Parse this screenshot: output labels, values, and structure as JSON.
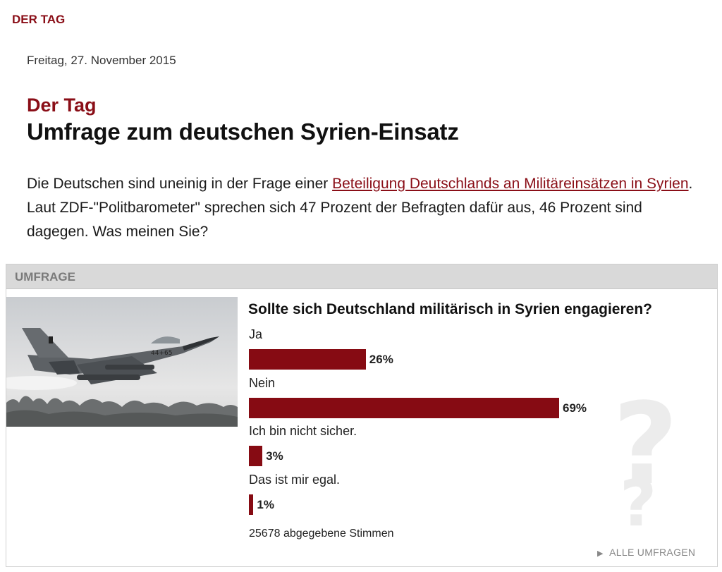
{
  "section_label": "DER TAG",
  "date": "Freitag, 27. November 2015",
  "kicker": "Der Tag",
  "headline": "Umfrage zum deutschen Syrien-Einsatz",
  "lead": {
    "before": "Die Deutschen sind uneinig in der Frage einer ",
    "link": "Beteiligung Deutschlands an Militäreinsätzen in Syrien",
    "after": ". Laut ZDF-\"Politbarometer\" sprechen sich 47 Prozent der Befragten dafür aus, 46 Prozent sind dagegen. Was meinen Sie?"
  },
  "poll": {
    "header": "UMFRAGE",
    "question": "Sollte sich Deutschland militärisch in Syrien engagieren?",
    "options": [
      {
        "label": "Ja",
        "percent_text": "26%",
        "value": 26
      },
      {
        "label": "Nein",
        "percent_text": "69%",
        "value": 69
      },
      {
        "label": "Ich bin nicht sicher.",
        "percent_text": "3%",
        "value": 3
      },
      {
        "label": "Das ist mir egal.",
        "percent_text": "1%",
        "value": 1
      }
    ],
    "votes": "25678 abgegebene Stimmen",
    "all_polls": "ALLE UMFRAGEN",
    "bar_color": "#860b13"
  },
  "colors": {
    "brand": "#8a0e17"
  },
  "icons": [
    "fighter-jet-photo",
    "question-mark-decoration",
    "play-arrow-icon"
  ]
}
